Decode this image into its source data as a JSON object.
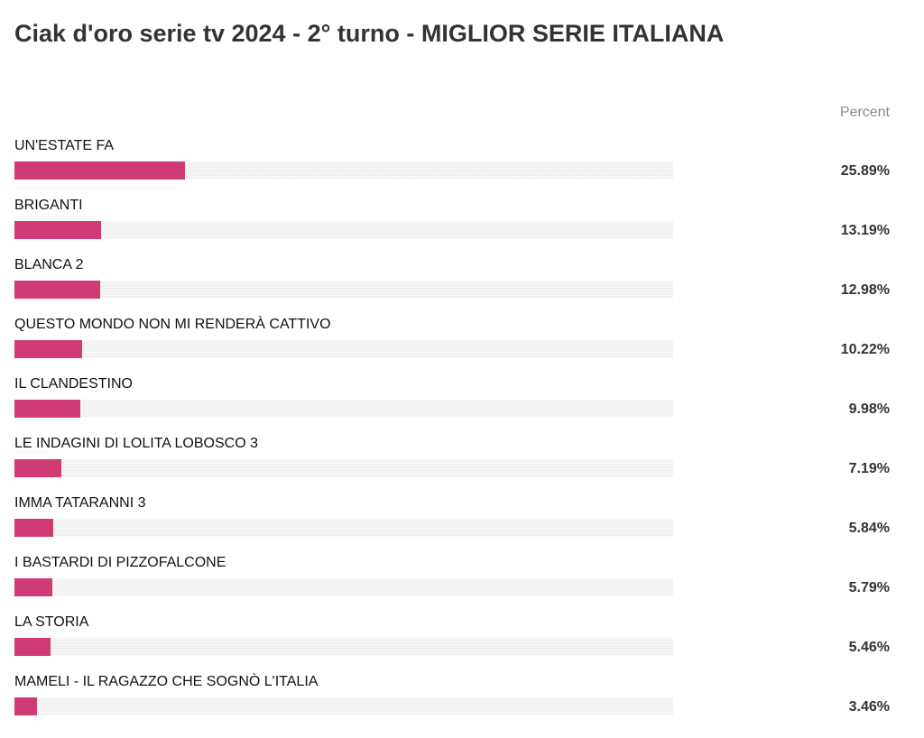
{
  "chart_data": {
    "type": "bar",
    "title": "Ciak d'oro serie tv 2024 - 2° turno - MIGLIOR SERIE ITALIANA",
    "column_header": "Percent",
    "bar_color": "#d13b75",
    "track_color": "#f1f1f1",
    "xlim": [
      0,
      100
    ],
    "categories": [
      "UN'ESTATE FA",
      "BRIGANTI",
      "BLANCA 2",
      "QUESTO MONDO NON MI RENDERÀ CATTIVO",
      "IL CLANDESTINO",
      "LE INDAGINI DI LOLITA LOBOSCO 3",
      "IMMA TATARANNI 3",
      "I BASTARDI DI PIZZOFALCONE",
      "LA STORIA",
      "MAMELI - IL RAGAZZO CHE SOGNÒ L'ITALIA"
    ],
    "values": [
      25.89,
      13.19,
      12.98,
      10.22,
      9.98,
      7.19,
      5.84,
      5.79,
      5.46,
      3.46
    ],
    "value_labels": [
      "25.89%",
      "13.19%",
      "12.98%",
      "10.22%",
      "9.98%",
      "7.19%",
      "5.84%",
      "5.79%",
      "5.46%",
      "3.46%"
    ]
  }
}
